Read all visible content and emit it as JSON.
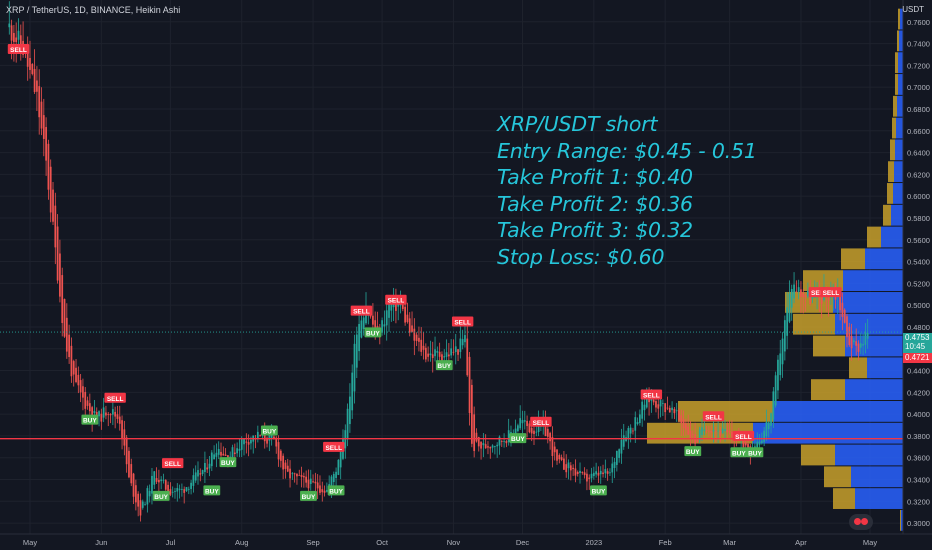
{
  "header": {
    "symbol_line": "XRP / TetherUS, 1D, BINANCE, Heikin Ashi",
    "currency": "USDT"
  },
  "annotation": {
    "lines": [
      "XRP/USDT short",
      "Entry Range: $0.45 - 0.51",
      "Take Profit 1: $0.40",
      "Take Profit 2: $0.36",
      "Take Profit 3: $0.32",
      "Stop Loss: $0.60"
    ]
  },
  "price_tags": {
    "last_price": "0.4753",
    "countdown": "10:45",
    "prev_close": "0.4721",
    "last_color": "#26a69a",
    "prev_color": "#f23645"
  },
  "colors": {
    "up": "#26a69a",
    "down": "#ef5350",
    "buy_label": "#4caf50",
    "sell_label": "#f23645",
    "vp_up": "#2962ff",
    "vp_down": "#c8a02a",
    "horizontal_line": "#f23645",
    "annotation": "#26c6da"
  },
  "chart_data": {
    "type": "candlestick",
    "ylim": [
      0.29,
      0.78
    ],
    "y_ticks": [
      "0.7600",
      "0.7400",
      "0.7200",
      "0.7000",
      "0.6800",
      "0.6600",
      "0.6400",
      "0.6200",
      "0.6000",
      "0.5800",
      "0.5600",
      "0.5400",
      "0.5200",
      "0.5000",
      "0.4800",
      "0.4600",
      "0.4400",
      "0.4200",
      "0.4000",
      "0.3800",
      "0.3600",
      "0.3400",
      "0.3200",
      "0.3000"
    ],
    "x_labels": [
      {
        "label": "May",
        "date": "2022-05-01"
      },
      {
        "label": "Jun",
        "date": "2022-06-01"
      },
      {
        "label": "Jul",
        "date": "2022-07-01"
      },
      {
        "label": "Aug",
        "date": "2022-08-01"
      },
      {
        "label": "Sep",
        "date": "2022-09-01"
      },
      {
        "label": "Oct",
        "date": "2022-10-01"
      },
      {
        "label": "Nov",
        "date": "2022-11-01"
      },
      {
        "label": "Dec",
        "date": "2022-12-01"
      },
      {
        "label": "2023",
        "date": "2023-01-01"
      },
      {
        "label": "Feb",
        "date": "2023-02-01"
      },
      {
        "label": "Mar",
        "date": "2023-03-01"
      },
      {
        "label": "Apr",
        "date": "2023-04-01"
      },
      {
        "label": "May",
        "date": "2023-05-01"
      }
    ],
    "price_path": [
      {
        "date": "2022-04-22",
        "close": 0.755
      },
      {
        "date": "2022-04-28",
        "close": 0.735
      },
      {
        "date": "2022-05-04",
        "close": 0.69
      },
      {
        "date": "2022-05-08",
        "close": 0.63
      },
      {
        "date": "2022-05-12",
        "close": 0.55
      },
      {
        "date": "2022-05-16",
        "close": 0.47
      },
      {
        "date": "2022-05-20",
        "close": 0.43
      },
      {
        "date": "2022-05-25",
        "close": 0.41
      },
      {
        "date": "2022-05-30",
        "close": 0.395
      },
      {
        "date": "2022-06-04",
        "close": 0.405
      },
      {
        "date": "2022-06-09",
        "close": 0.395
      },
      {
        "date": "2022-06-13",
        "close": 0.34
      },
      {
        "date": "2022-06-18",
        "close": 0.31
      },
      {
        "date": "2022-06-24",
        "close": 0.345
      },
      {
        "date": "2022-06-30",
        "close": 0.33
      },
      {
        "date": "2022-07-06",
        "close": 0.33
      },
      {
        "date": "2022-07-11",
        "close": 0.34
      },
      {
        "date": "2022-07-16",
        "close": 0.35
      },
      {
        "date": "2022-07-21",
        "close": 0.37
      },
      {
        "date": "2022-07-26",
        "close": 0.36
      },
      {
        "date": "2022-08-01",
        "close": 0.375
      },
      {
        "date": "2022-08-08",
        "close": 0.38
      },
      {
        "date": "2022-08-15",
        "close": 0.375
      },
      {
        "date": "2022-08-20",
        "close": 0.345
      },
      {
        "date": "2022-08-26",
        "close": 0.34
      },
      {
        "date": "2022-09-01",
        "close": 0.335
      },
      {
        "date": "2022-09-07",
        "close": 0.33
      },
      {
        "date": "2022-09-11",
        "close": 0.35
      },
      {
        "date": "2022-09-16",
        "close": 0.4
      },
      {
        "date": "2022-09-20",
        "close": 0.48
      },
      {
        "date": "2022-09-24",
        "close": 0.5
      },
      {
        "date": "2022-09-29",
        "close": 0.47
      },
      {
        "date": "2022-10-04",
        "close": 0.5
      },
      {
        "date": "2022-10-09",
        "close": 0.5
      },
      {
        "date": "2022-10-14",
        "close": 0.47
      },
      {
        "date": "2022-10-20",
        "close": 0.455
      },
      {
        "date": "2022-10-25",
        "close": 0.455
      },
      {
        "date": "2022-10-29",
        "close": 0.455
      },
      {
        "date": "2022-11-03",
        "close": 0.46
      },
      {
        "date": "2022-11-06",
        "close": 0.47
      },
      {
        "date": "2022-11-09",
        "close": 0.37
      },
      {
        "date": "2022-11-14",
        "close": 0.37
      },
      {
        "date": "2022-11-20",
        "close": 0.375
      },
      {
        "date": "2022-11-25",
        "close": 0.38
      },
      {
        "date": "2022-11-30",
        "close": 0.395
      },
      {
        "date": "2022-12-05",
        "close": 0.385
      },
      {
        "date": "2022-12-10",
        "close": 0.39
      },
      {
        "date": "2022-12-16",
        "close": 0.355
      },
      {
        "date": "2022-12-22",
        "close": 0.35
      },
      {
        "date": "2022-12-28",
        "close": 0.34
      },
      {
        "date": "2023-01-03",
        "close": 0.345
      },
      {
        "date": "2023-01-08",
        "close": 0.345
      },
      {
        "date": "2023-01-13",
        "close": 0.38
      },
      {
        "date": "2023-01-18",
        "close": 0.39
      },
      {
        "date": "2023-01-24",
        "close": 0.415
      },
      {
        "date": "2023-01-29",
        "close": 0.41
      },
      {
        "date": "2023-02-03",
        "close": 0.405
      },
      {
        "date": "2023-02-09",
        "close": 0.39
      },
      {
        "date": "2023-02-14",
        "close": 0.375
      },
      {
        "date": "2023-02-19",
        "close": 0.39
      },
      {
        "date": "2023-02-24",
        "close": 0.385
      },
      {
        "date": "2023-03-01",
        "close": 0.38
      },
      {
        "date": "2023-03-06",
        "close": 0.375
      },
      {
        "date": "2023-03-10",
        "close": 0.37
      },
      {
        "date": "2023-03-15",
        "close": 0.38
      },
      {
        "date": "2023-03-19",
        "close": 0.4
      },
      {
        "date": "2023-03-23",
        "close": 0.46
      },
      {
        "date": "2023-03-28",
        "close": 0.52
      },
      {
        "date": "2023-04-02",
        "close": 0.51
      },
      {
        "date": "2023-04-07",
        "close": 0.505
      },
      {
        "date": "2023-04-12",
        "close": 0.51
      },
      {
        "date": "2023-04-17",
        "close": 0.51
      },
      {
        "date": "2023-04-21",
        "close": 0.47
      },
      {
        "date": "2023-04-25",
        "close": 0.46
      },
      {
        "date": "2023-04-30",
        "close": 0.475
      }
    ],
    "signals": [
      {
        "text": "SELL",
        "date": "2022-04-26",
        "price": 0.735,
        "side": "sell"
      },
      {
        "text": "BUY",
        "date": "2022-05-27",
        "price": 0.395,
        "side": "buy"
      },
      {
        "text": "SELL",
        "date": "2022-06-07",
        "price": 0.415,
        "side": "sell"
      },
      {
        "text": "BUY",
        "date": "2022-06-27",
        "price": 0.325,
        "side": "buy"
      },
      {
        "text": "SELL",
        "date": "2022-07-02",
        "price": 0.355,
        "side": "sell"
      },
      {
        "text": "BUY",
        "date": "2022-07-19",
        "price": 0.33,
        "side": "buy"
      },
      {
        "text": "BUY",
        "date": "2022-07-26",
        "price": 0.356,
        "side": "buy"
      },
      {
        "text": "BUY",
        "date": "2022-08-13",
        "price": 0.385,
        "side": "buy"
      },
      {
        "text": "BUY",
        "date": "2022-08-30",
        "price": 0.325,
        "side": "buy"
      },
      {
        "text": "BUY",
        "date": "2022-09-11",
        "price": 0.33,
        "side": "buy"
      },
      {
        "text": "SELL",
        "date": "2022-09-10",
        "price": 0.37,
        "side": "sell"
      },
      {
        "text": "SELL",
        "date": "2022-09-22",
        "price": 0.495,
        "side": "sell"
      },
      {
        "text": "BUY",
        "date": "2022-09-27",
        "price": 0.475,
        "side": "buy"
      },
      {
        "text": "SELL",
        "date": "2022-10-07",
        "price": 0.505,
        "side": "sell"
      },
      {
        "text": "BUY",
        "date": "2022-10-28",
        "price": 0.445,
        "side": "buy"
      },
      {
        "text": "SELL",
        "date": "2022-11-05",
        "price": 0.485,
        "side": "sell"
      },
      {
        "text": "BUY",
        "date": "2022-11-29",
        "price": 0.378,
        "side": "buy"
      },
      {
        "text": "SELL",
        "date": "2022-12-09",
        "price": 0.393,
        "side": "sell"
      },
      {
        "text": "SELL",
        "date": "2023-01-26",
        "price": 0.418,
        "side": "sell"
      },
      {
        "text": "BUY",
        "date": "2023-01-03",
        "price": 0.33,
        "side": "buy"
      },
      {
        "text": "SELL",
        "date": "2023-02-22",
        "price": 0.398,
        "side": "sell"
      },
      {
        "text": "BUY",
        "date": "2023-02-13",
        "price": 0.366,
        "side": "buy"
      },
      {
        "text": "BUY",
        "date": "2023-03-05",
        "price": 0.365,
        "side": "buy"
      },
      {
        "text": "SELL",
        "date": "2023-03-07",
        "price": 0.38,
        "side": "sell"
      },
      {
        "text": "BUY",
        "date": "2023-03-12",
        "price": 0.365,
        "side": "buy"
      },
      {
        "text": "SELL",
        "date": "2023-04-09",
        "price": 0.512,
        "side": "sell"
      },
      {
        "text": "SELL",
        "date": "2023-04-14",
        "price": 0.512,
        "side": "sell"
      }
    ],
    "horizontal_line": 0.3775,
    "current_price_line": 0.4753,
    "volume_profile": [
      {
        "price": 0.3025,
        "up": 2,
        "down": 1
      },
      {
        "price": 0.3225,
        "up": 48,
        "down": 22
      },
      {
        "price": 0.3425,
        "up": 52,
        "down": 27
      },
      {
        "price": 0.3625,
        "up": 68,
        "down": 34
      },
      {
        "price": 0.3825,
        "up": 150,
        "down": 106
      },
      {
        "price": 0.4025,
        "up": 130,
        "down": 95
      },
      {
        "price": 0.4225,
        "up": 58,
        "down": 34
      },
      {
        "price": 0.4425,
        "up": 36,
        "down": 18
      },
      {
        "price": 0.4625,
        "up": 58,
        "down": 32
      },
      {
        "price": 0.4825,
        "up": 68,
        "down": 42
      },
      {
        "price": 0.5025,
        "up": 70,
        "down": 48
      },
      {
        "price": 0.5225,
        "up": 60,
        "down": 40
      },
      {
        "price": 0.5425,
        "up": 38,
        "down": 24
      },
      {
        "price": 0.5625,
        "up": 22,
        "down": 14
      },
      {
        "price": 0.5825,
        "up": 12,
        "down": 8
      },
      {
        "price": 0.6025,
        "up": 10,
        "down": 6
      },
      {
        "price": 0.6225,
        "up": 9,
        "down": 6
      },
      {
        "price": 0.6425,
        "up": 8,
        "down": 5
      },
      {
        "price": 0.6625,
        "up": 7,
        "down": 4
      },
      {
        "price": 0.6825,
        "up": 6,
        "down": 4
      },
      {
        "price": 0.7025,
        "up": 5,
        "down": 3
      },
      {
        "price": 0.7225,
        "up": 5,
        "down": 3
      },
      {
        "price": 0.7425,
        "up": 4,
        "down": 2
      },
      {
        "price": 0.7625,
        "up": 3,
        "down": 2
      }
    ]
  }
}
